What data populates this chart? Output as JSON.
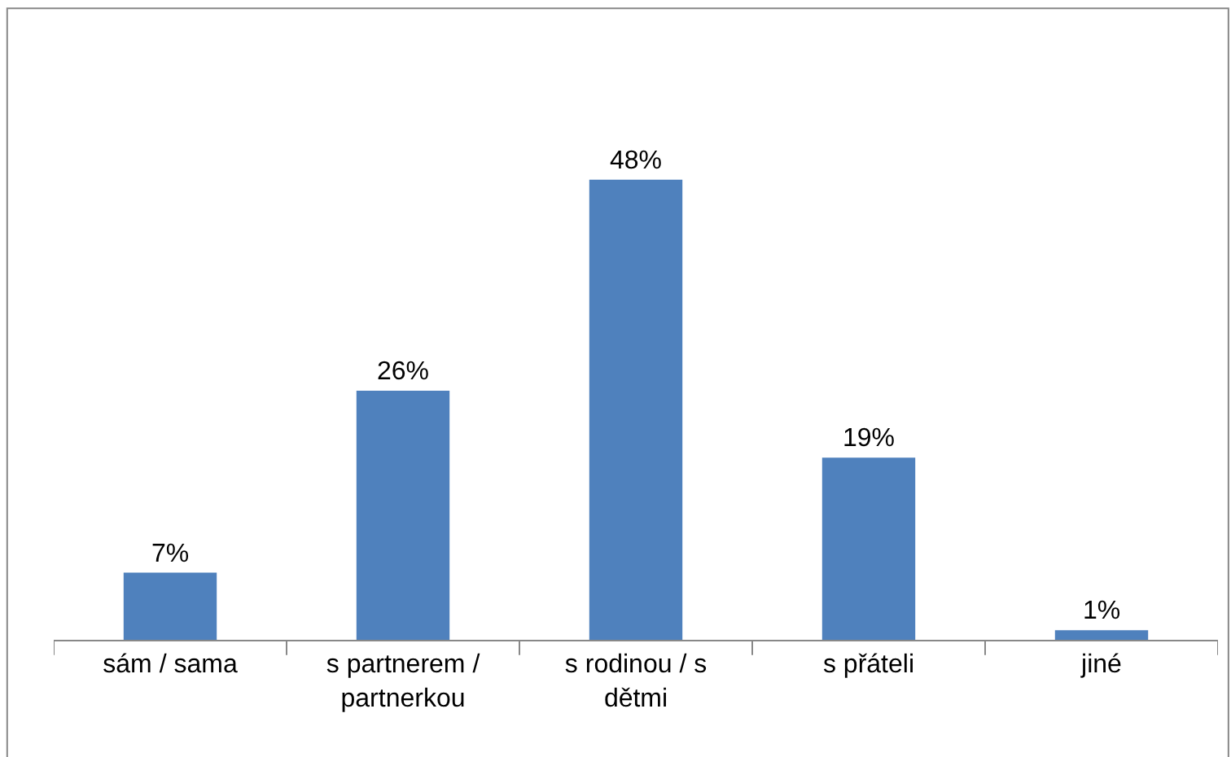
{
  "chart_data": {
    "type": "bar",
    "categories": [
      "sám / sama",
      "s partnerem / partnerkou",
      "s rodinou / s dětmi",
      "s přáteli",
      "jiné"
    ],
    "values": [
      7,
      26,
      48,
      19,
      1
    ],
    "value_labels": [
      "7%",
      "26%",
      "48%",
      "19%",
      "1%"
    ],
    "color": "#4f81bd"
  }
}
